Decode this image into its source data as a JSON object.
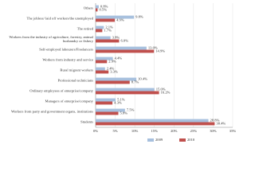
{
  "chart_data": {
    "type": "bar",
    "orientation": "horizontal",
    "categories": [
      "Others",
      "The jobless/ laid off workers/the unemployed",
      "The retired",
      "Workers from the industry of agriculture, forestry, animal husbandry or fishery",
      "Self-employed labourers/Freelancers",
      "Workers from industry and service",
      "Rural migrant workers",
      "Professional technicians",
      "Ordinary employees of enterprise/company",
      "Managers of enterprise/company",
      "Workers from party and government organs, institutions",
      "Students"
    ],
    "series": [
      {
        "name": "2009",
        "color": "#a7c0de",
        "values": [
          0.8,
          9.8,
          2.1,
          3.8,
          13.0,
          4.4,
          2.4,
          10.4,
          15.0,
          5.1,
          7.5,
          28.8
        ],
        "value_labels": [
          "0.8%",
          "9.8%",
          "2.1%",
          "3.8%",
          "13.0%",
          "4.4%",
          "2.4%",
          "10.4%",
          "15.0%",
          "5.1%",
          "7.5%",
          "28.8%"
        ]
      },
      {
        "name": "2010",
        "color": "#c0504d",
        "values": [
          0.5,
          4.9,
          1.7,
          6.0,
          14.9,
          2.9,
          3.3,
          8.7,
          16.2,
          4.3,
          5.8,
          30.4
        ],
        "value_labels": [
          "0.5%",
          "4.9%",
          "1.7%",
          "6.0%",
          "14.9%",
          "2.9%",
          "3.3%",
          "8.7%",
          "16.2%",
          "4.3%",
          "5.8%",
          "30.4%"
        ]
      }
    ],
    "xlim": [
      0,
      35
    ],
    "xticks": [
      {
        "value": 0,
        "label": "0%"
      },
      {
        "value": 5,
        "label": "5%"
      },
      {
        "value": 10,
        "label": "10%"
      },
      {
        "value": 15,
        "label": "15%"
      },
      {
        "value": 20,
        "label": "20%"
      },
      {
        "value": 25,
        "label": "25%"
      },
      {
        "value": 30,
        "label": "30%"
      },
      {
        "value": 35,
        "label": "35%"
      }
    ],
    "grid": true,
    "legend": "bottom"
  }
}
